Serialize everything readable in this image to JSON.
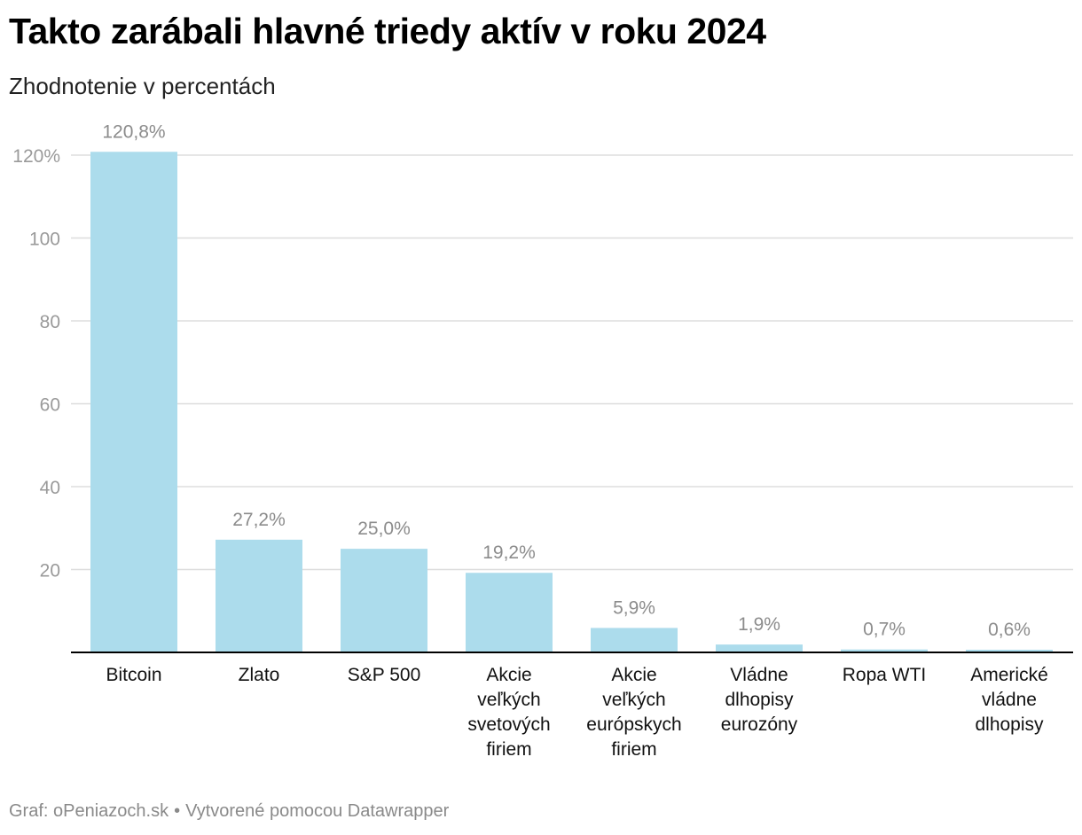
{
  "header": {
    "title": "Takto zarábali hlavné triedy aktív v roku 2024",
    "subtitle": "Zhodnotenie v percentách"
  },
  "footer": {
    "source": "Graf: oPeniazoch.sk",
    "separator": "•",
    "credit": "Vytvorené pomocou Datawrapper"
  },
  "colors": {
    "bar": "#acdcec",
    "grid": "#dddddd",
    "axis": "#000000",
    "tick_label": "#9a9a9a",
    "value_label": "#8c8c8c"
  },
  "chart_data": {
    "type": "bar",
    "categories": [
      [
        "Bitcoin"
      ],
      [
        "Zlato"
      ],
      [
        "S&P 500"
      ],
      [
        "Akcie",
        "veľkých",
        "svetových",
        "firiem"
      ],
      [
        "Akcie",
        "veľkých",
        "európskych",
        "firiem"
      ],
      [
        "Vládne",
        "dlhopisy",
        "eurozóny"
      ],
      [
        "Ropa WTI"
      ],
      [
        "Americké",
        "vládne",
        "dlhopisy"
      ]
    ],
    "values": [
      120.8,
      27.2,
      25.0,
      19.2,
      5.9,
      1.9,
      0.7,
      0.6
    ],
    "value_labels": [
      "120,8%",
      "27,2%",
      "25,0%",
      "19,2%",
      "5,9%",
      "1,9%",
      "0,7%",
      "0,6%"
    ],
    "yticks": [
      20,
      40,
      60,
      80,
      100,
      120
    ],
    "ytick_labels": [
      "20",
      "40",
      "60",
      "80",
      "100",
      "120%"
    ],
    "ylim": [
      0,
      120
    ],
    "grid": true,
    "legend": "none"
  }
}
